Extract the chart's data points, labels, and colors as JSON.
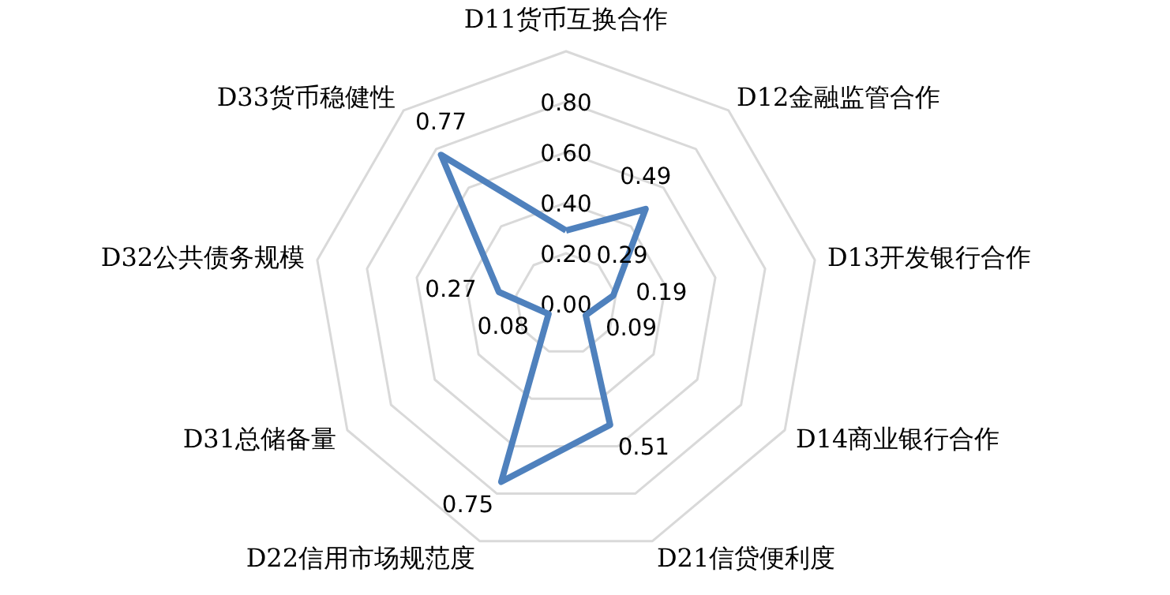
{
  "chart_data": {
    "type": "radar",
    "categories": [
      "D11货币互换合作",
      "D12金融监管合作",
      "D13开发银行合作",
      "D14商业银行合作",
      "D21信贷便利度",
      "D22信用市场规范度",
      "D31总储备量",
      "D32公共债务规模",
      "D33货币稳健性"
    ],
    "series": [
      {
        "color": "#4f81bd",
        "values": [
          0.29,
          0.49,
          0.19,
          0.09,
          0.51,
          0.75,
          0.08,
          0.27,
          0.77
        ]
      }
    ],
    "ylim": [
      0,
      1
    ],
    "yticks": [
      {
        "value": 0,
        "label": "0.00"
      },
      {
        "value": 0.2,
        "label": "0.20"
      },
      {
        "value": 0.4,
        "label": "0.40"
      },
      {
        "value": 0.6,
        "label": "0.60"
      },
      {
        "value": 0.8,
        "label": "0.80"
      }
    ],
    "grid": true,
    "data_labels": true,
    "marker": "none",
    "line_style": "solid"
  }
}
